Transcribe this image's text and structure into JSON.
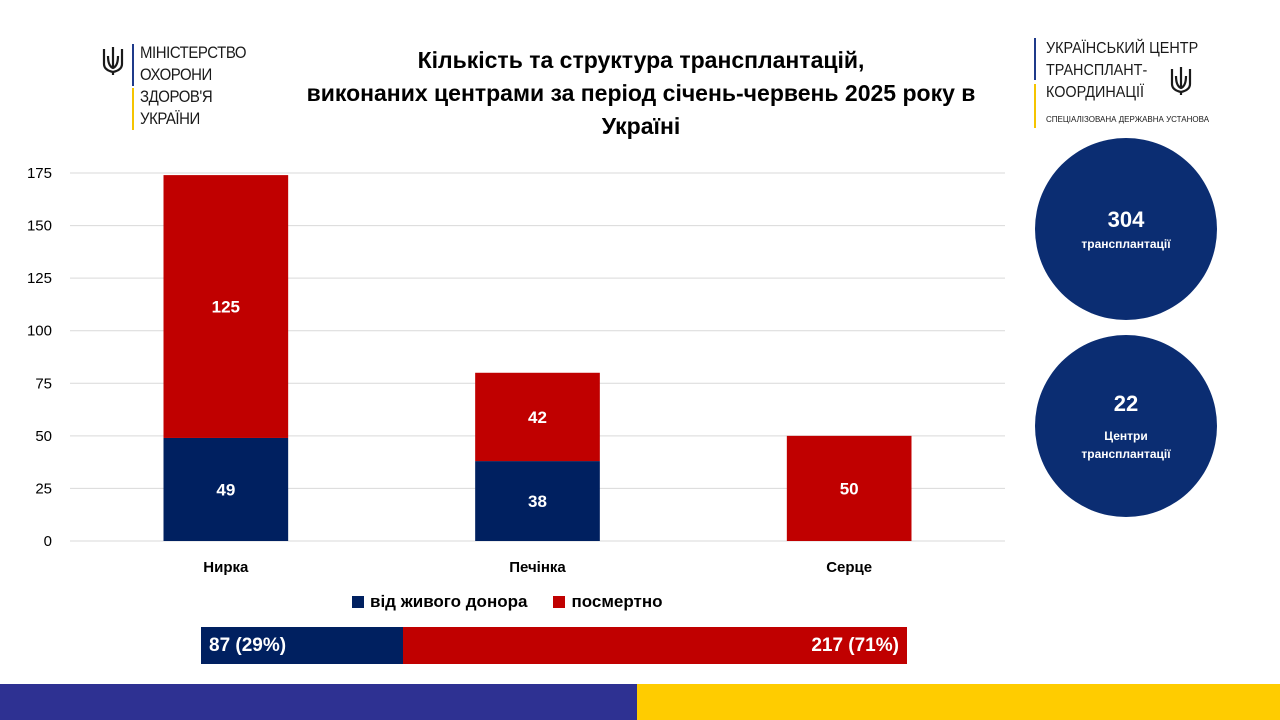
{
  "logos": {
    "ministry": {
      "lines": [
        "МІНІСТЕРСТВО",
        "ОХОРОНИ",
        "ЗДОРОВ'Я",
        "УКРАЇНИ"
      ],
      "icon": "trident-icon"
    },
    "transplant_center": {
      "lines": [
        "УКРАЇНСЬКИЙ ЦЕНТР",
        "ТРАНСПЛАНТ-",
        "КООРДИНАЦІЇ"
      ],
      "subtitle": "СПЕЦІАЛІЗОВАНА ДЕРЖАВНА УСТАНОВА",
      "icon": "trident-icon"
    }
  },
  "title_lines": [
    "Кількість та структура трансплантацій,",
    "виконаних центрами за період січень-червень 2025 року в",
    "Україні"
  ],
  "chart_data": {
    "type": "bar",
    "stacked": true,
    "categories": [
      "Нирка",
      "Печінка",
      "Серце"
    ],
    "series": [
      {
        "name": "від живого донора",
        "values": [
          49,
          38,
          0
        ],
        "color": "#002060"
      },
      {
        "name": "посмертно",
        "values": [
          125,
          42,
          50
        ],
        "color": "#c00000"
      }
    ],
    "ylim": [
      0,
      175
    ],
    "yticks": [
      0,
      25,
      50,
      75,
      100,
      125,
      150,
      175
    ],
    "grid": true,
    "legend": "bottom"
  },
  "summary": {
    "living": {
      "label": "87 (29%)",
      "value": 87,
      "color": "#002060"
    },
    "deceased": {
      "label": "217 (71%)",
      "value": 217,
      "color": "#c00000"
    }
  },
  "circles": [
    {
      "number": "304",
      "label": "трансплантації"
    },
    {
      "number": "22",
      "label": "Центри трансплантації"
    }
  ],
  "colors": {
    "circle": "#0b2d72",
    "stripe_blue": "#2e3192",
    "stripe_yellow": "#ffcc00"
  }
}
